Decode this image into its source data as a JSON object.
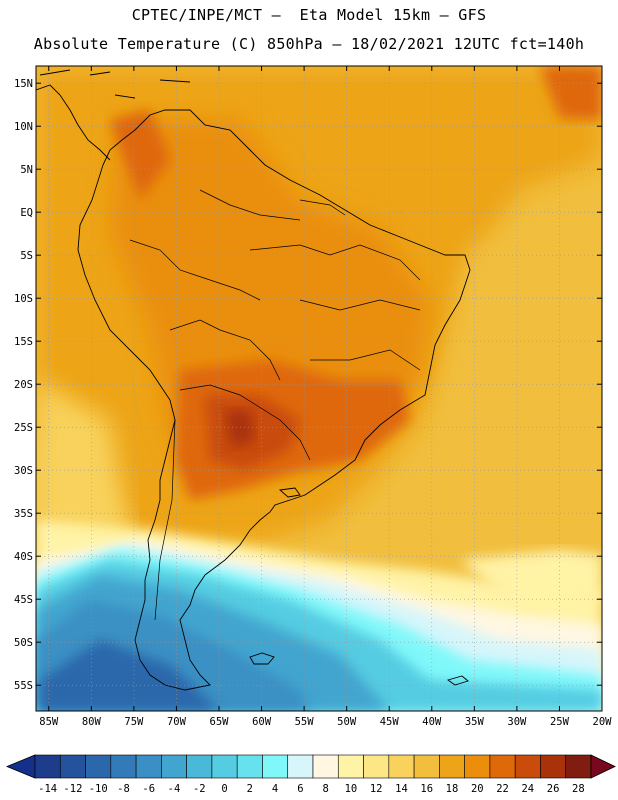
{
  "header": {
    "line1": "CPTEC/INPE/MCT –  Eta Model 15km – GFS",
    "line2": "Absolute Temperature (C) 850hPa – 18/02/2021 12UTC fct=140h"
  },
  "axes": {
    "lat_labels": [
      "15N",
      "10N",
      "5N",
      "EQ",
      "5S",
      "10S",
      "15S",
      "20S",
      "25S",
      "30S",
      "35S",
      "40S",
      "45S",
      "50S",
      "55S"
    ],
    "lat_values": [
      15,
      10,
      5,
      0,
      -5,
      -10,
      -15,
      -20,
      -25,
      -30,
      -35,
      -40,
      -45,
      -50,
      -55
    ],
    "lon_labels": [
      "85W",
      "80W",
      "75W",
      "70W",
      "65W",
      "60W",
      "55W",
      "50W",
      "45W",
      "40W",
      "35W",
      "30W",
      "25W",
      "20W"
    ],
    "lon_values": [
      -85,
      -80,
      -75,
      -70,
      -65,
      -60,
      -55,
      -50,
      -45,
      -40,
      -35,
      -30,
      -25,
      -20
    ],
    "lat_range": [
      -58,
      17
    ],
    "lon_range": [
      -86.5,
      -20
    ]
  },
  "colorbar": {
    "labels": [
      "-14",
      "-12",
      "-10",
      "-8",
      "-6",
      "-4",
      "-2",
      "0",
      "2",
      "4",
      "6",
      "8",
      "10",
      "12",
      "14",
      "16",
      "18",
      "20",
      "22",
      "24",
      "26",
      "28"
    ],
    "colors": [
      "#1d3c8c",
      "#24529d",
      "#2a67ab",
      "#327bb8",
      "#3a90c4",
      "#42a5cf",
      "#4ab8d8",
      "#55cce2",
      "#66e2ee",
      "#80f8fa",
      "#d6f6fb",
      "#fff7e2",
      "#fff3a6",
      "#fde685",
      "#f8d25c",
      "#f1be3e",
      "#eda418",
      "#ea8e0c",
      "#df6808",
      "#c94c0a",
      "#a9320a",
      "#801c10"
    ],
    "under_color": "#15308a",
    "over_color": "#78081e"
  },
  "palette": {
    "frame": "#000000",
    "grid": "#999999",
    "coast": "#000000"
  }
}
